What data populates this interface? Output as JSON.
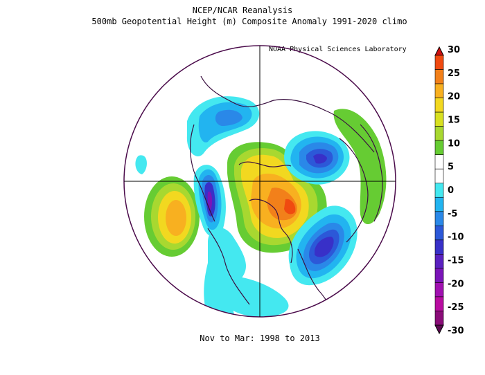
{
  "header": {
    "title": "NCEP/NCAR Reanalysis",
    "subtitle": "500mb Geopotential Height (m) Composite Anomaly 1991-2020 climo",
    "credit": "NOAA Physical Sciences Laboratory"
  },
  "footer": {
    "period": "Nov to Mar: 1998 to 2013"
  },
  "colorbar": {
    "labels": [
      "30",
      "25",
      "20",
      "15",
      "10",
      "5",
      "0",
      "-5",
      "-10",
      "-15",
      "-20",
      "-25",
      "-30"
    ],
    "colors": [
      "#d01010",
      "#f04a10",
      "#f2801a",
      "#f8b020",
      "#f2d820",
      "#d8e020",
      "#a8d830",
      "#66cc33",
      "#ffffff",
      "#ffffff",
      "#44e8f0",
      "#22b4f0",
      "#2a88e8",
      "#2c58d8",
      "#3830c8",
      "#5a20c0",
      "#7a14b8",
      "#a010b0",
      "#b80ca0",
      "#8a0c78",
      "#5c0a50"
    ]
  },
  "map": {
    "projection": "north polar stereographic",
    "features": [
      "warm-anomaly-arctic",
      "warm-anomaly-hudson-bay",
      "cold-anomaly-gulf-of-alaska",
      "cold-anomaly-north-atlantic",
      "cold-anomaly-barents-sea",
      "cold-anomaly-siberia",
      "warm-anomaly-europe",
      "warm-anomaly-subtropical-atlantic"
    ]
  }
}
